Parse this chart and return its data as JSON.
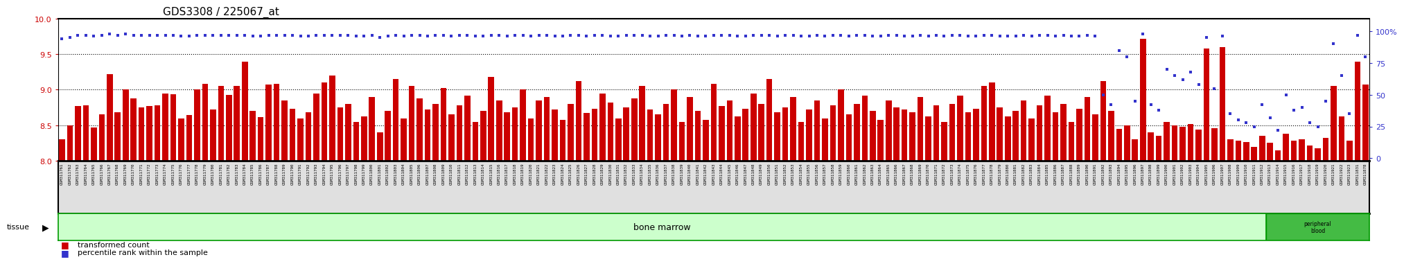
{
  "title": "GDS3308 / 225067_at",
  "samples": [
    "GSM311761",
    "GSM311762",
    "GSM311763",
    "GSM311764",
    "GSM311765",
    "GSM311766",
    "GSM311767",
    "GSM311768",
    "GSM311769",
    "GSM311770",
    "GSM311771",
    "GSM311772",
    "GSM311773",
    "GSM311774",
    "GSM311775",
    "GSM311776",
    "GSM311777",
    "GSM311778",
    "GSM311779",
    "GSM311780",
    "GSM311781",
    "GSM311782",
    "GSM311783",
    "GSM311784",
    "GSM311785",
    "GSM311786",
    "GSM311787",
    "GSM311788",
    "GSM311789",
    "GSM311790",
    "GSM311791",
    "GSM311792",
    "GSM311793",
    "GSM311794",
    "GSM311795",
    "GSM311796",
    "GSM311797",
    "GSM311798",
    "GSM311799",
    "GSM311800",
    "GSM311801",
    "GSM311802",
    "GSM311803",
    "GSM311804",
    "GSM311805",
    "GSM311806",
    "GSM311807",
    "GSM311808",
    "GSM311809",
    "GSM311810",
    "GSM311811",
    "GSM311812",
    "GSM311813",
    "GSM311814",
    "GSM311815",
    "GSM311816",
    "GSM311817",
    "GSM311818",
    "GSM311819",
    "GSM311820",
    "GSM311821",
    "GSM311822",
    "GSM311823",
    "GSM311824",
    "GSM311825",
    "GSM311826",
    "GSM311827",
    "GSM311828",
    "GSM311829",
    "GSM311830",
    "GSM311831",
    "GSM311832",
    "GSM311833",
    "GSM311834",
    "GSM311835",
    "GSM311836",
    "GSM311837",
    "GSM311838",
    "GSM311839",
    "GSM311840",
    "GSM311841",
    "GSM311842",
    "GSM311843",
    "GSM311844",
    "GSM311845",
    "GSM311846",
    "GSM311847",
    "GSM311848",
    "GSM311849",
    "GSM311850",
    "GSM311851",
    "GSM311852",
    "GSM311853",
    "GSM311854",
    "GSM311855",
    "GSM311856",
    "GSM311857",
    "GSM311858",
    "GSM311859",
    "GSM311860",
    "GSM311861",
    "GSM311862",
    "GSM311863",
    "GSM311864",
    "GSM311865",
    "GSM311866",
    "GSM311867",
    "GSM311868",
    "GSM311869",
    "GSM311870",
    "GSM311871",
    "GSM311872",
    "GSM311873",
    "GSM311874",
    "GSM311875",
    "GSM311876",
    "GSM311877",
    "GSM311878",
    "GSM311879",
    "GSM311880",
    "GSM311881",
    "GSM311882",
    "GSM311883",
    "GSM311884",
    "GSM311885",
    "GSM311886",
    "GSM311887",
    "GSM311888",
    "GSM311889",
    "GSM311890",
    "GSM311891",
    "GSM311892",
    "GSM311893",
    "GSM311894",
    "GSM311895",
    "GSM311896",
    "GSM311897",
    "GSM311898",
    "GSM311899",
    "GSM311900",
    "GSM311901",
    "GSM311902",
    "GSM311903",
    "GSM311904",
    "GSM311905",
    "GSM311906",
    "GSM311907",
    "GSM311908",
    "GSM311909",
    "GSM311910",
    "GSM311911",
    "GSM311912",
    "GSM311913",
    "GSM311914",
    "GSM311915",
    "GSM311916",
    "GSM311917",
    "GSM311918",
    "GSM311919",
    "GSM311920",
    "GSM311921",
    "GSM311922",
    "GSM311923",
    "GSM311831",
    "GSM311878"
  ],
  "transformed_count": [
    8.3,
    8.5,
    8.77,
    8.78,
    8.47,
    8.65,
    9.22,
    8.68,
    9.0,
    8.88,
    8.75,
    8.77,
    8.78,
    8.95,
    8.94,
    8.6,
    8.64,
    9.0,
    9.08,
    8.72,
    9.05,
    8.93,
    9.05,
    9.39,
    8.7,
    8.61,
    9.07,
    9.08,
    8.85,
    8.73,
    8.6,
    8.68,
    8.95,
    9.1,
    9.2,
    8.75,
    8.8,
    8.55,
    8.62,
    8.9,
    8.4,
    8.7,
    9.15,
    8.6,
    9.05,
    8.88,
    8.72,
    8.8,
    9.02,
    8.65,
    8.78,
    8.92,
    8.55,
    8.7,
    9.18,
    8.85,
    8.68,
    8.75,
    9.0,
    8.6,
    8.85,
    8.9,
    8.72,
    8.58,
    8.8,
    9.12,
    8.67,
    8.73,
    8.95,
    8.82,
    8.6,
    8.75,
    8.88,
    9.05,
    8.72,
    8.65,
    8.8,
    9.0,
    8.55,
    8.9,
    8.7,
    8.58,
    9.08,
    8.77,
    8.85,
    8.62,
    8.73,
    8.95,
    8.8,
    9.15,
    8.68,
    8.75,
    8.9,
    8.55,
    8.72,
    8.85,
    8.6,
    8.78,
    9.0,
    8.65,
    8.8,
    8.92,
    8.7,
    8.58,
    8.85,
    8.75,
    8.72,
    8.68,
    8.9,
    8.62,
    8.78,
    8.55,
    8.8,
    8.92,
    8.68,
    8.73,
    9.05,
    9.1,
    8.75,
    8.62,
    8.7,
    8.85,
    8.6,
    8.78,
    8.92,
    8.68,
    8.8,
    8.55,
    8.73,
    8.9,
    8.65,
    9.12,
    8.7,
    8.45,
    8.5,
    8.3,
    9.72,
    8.4,
    8.35,
    8.55,
    8.5,
    8.48,
    8.52,
    8.44,
    9.58,
    8.46,
    9.6,
    8.3,
    8.28,
    8.26,
    8.2,
    8.35,
    8.25,
    8.15,
    8.38,
    8.28,
    8.3,
    8.22,
    8.18,
    8.32,
    9.05,
    8.62,
    8.28,
    9.39,
    9.07
  ],
  "percentile_rank": [
    94,
    95,
    97,
    97,
    96,
    97,
    98,
    97,
    98,
    97,
    97,
    97,
    97,
    97,
    97,
    96,
    96,
    97,
    97,
    97,
    97,
    97,
    97,
    97,
    96,
    96,
    97,
    97,
    97,
    97,
    96,
    96,
    97,
    97,
    97,
    97,
    97,
    96,
    96,
    97,
    95,
    96,
    97,
    96,
    97,
    97,
    96,
    97,
    97,
    96,
    97,
    97,
    96,
    96,
    97,
    97,
    96,
    97,
    97,
    96,
    97,
    97,
    96,
    96,
    97,
    97,
    96,
    97,
    97,
    96,
    96,
    97,
    97,
    97,
    96,
    96,
    97,
    97,
    96,
    97,
    96,
    96,
    97,
    97,
    97,
    96,
    96,
    97,
    97,
    97,
    96,
    97,
    97,
    96,
    96,
    97,
    96,
    97,
    97,
    96,
    97,
    97,
    96,
    96,
    97,
    97,
    96,
    96,
    97,
    96,
    97,
    96,
    97,
    97,
    96,
    96,
    97,
    97,
    96,
    96,
    96,
    97,
    96,
    97,
    97,
    96,
    97,
    96,
    96,
    97,
    96,
    50,
    42,
    85,
    80,
    45,
    98,
    42,
    38,
    70,
    65,
    62,
    68,
    58,
    95,
    55,
    96,
    35,
    30,
    28,
    25,
    42,
    32,
    22,
    50,
    38,
    40,
    28,
    25,
    45,
    90,
    65,
    35,
    97,
    80
  ],
  "bone_marrow_count": 152,
  "ylim_left": [
    8.0,
    10.0
  ],
  "ylim_right": [
    -2,
    110
  ],
  "yticks_left": [
    8.0,
    8.5,
    9.0,
    9.5,
    10.0
  ],
  "yticks_right": [
    0,
    25,
    50,
    75,
    100
  ],
  "bar_color": "#cc0000",
  "dot_color": "#3333cc",
  "bg_color": "#ffffff",
  "tissue_bg": "#ccffcc",
  "tissue_border": "#009900",
  "label_color_left": "#cc0000",
  "label_color_right": "#3333cc",
  "tissue_label": "tissue",
  "bone_marrow_text": "bone marrow",
  "peripheral_blood_text": "peripheral\nblood"
}
